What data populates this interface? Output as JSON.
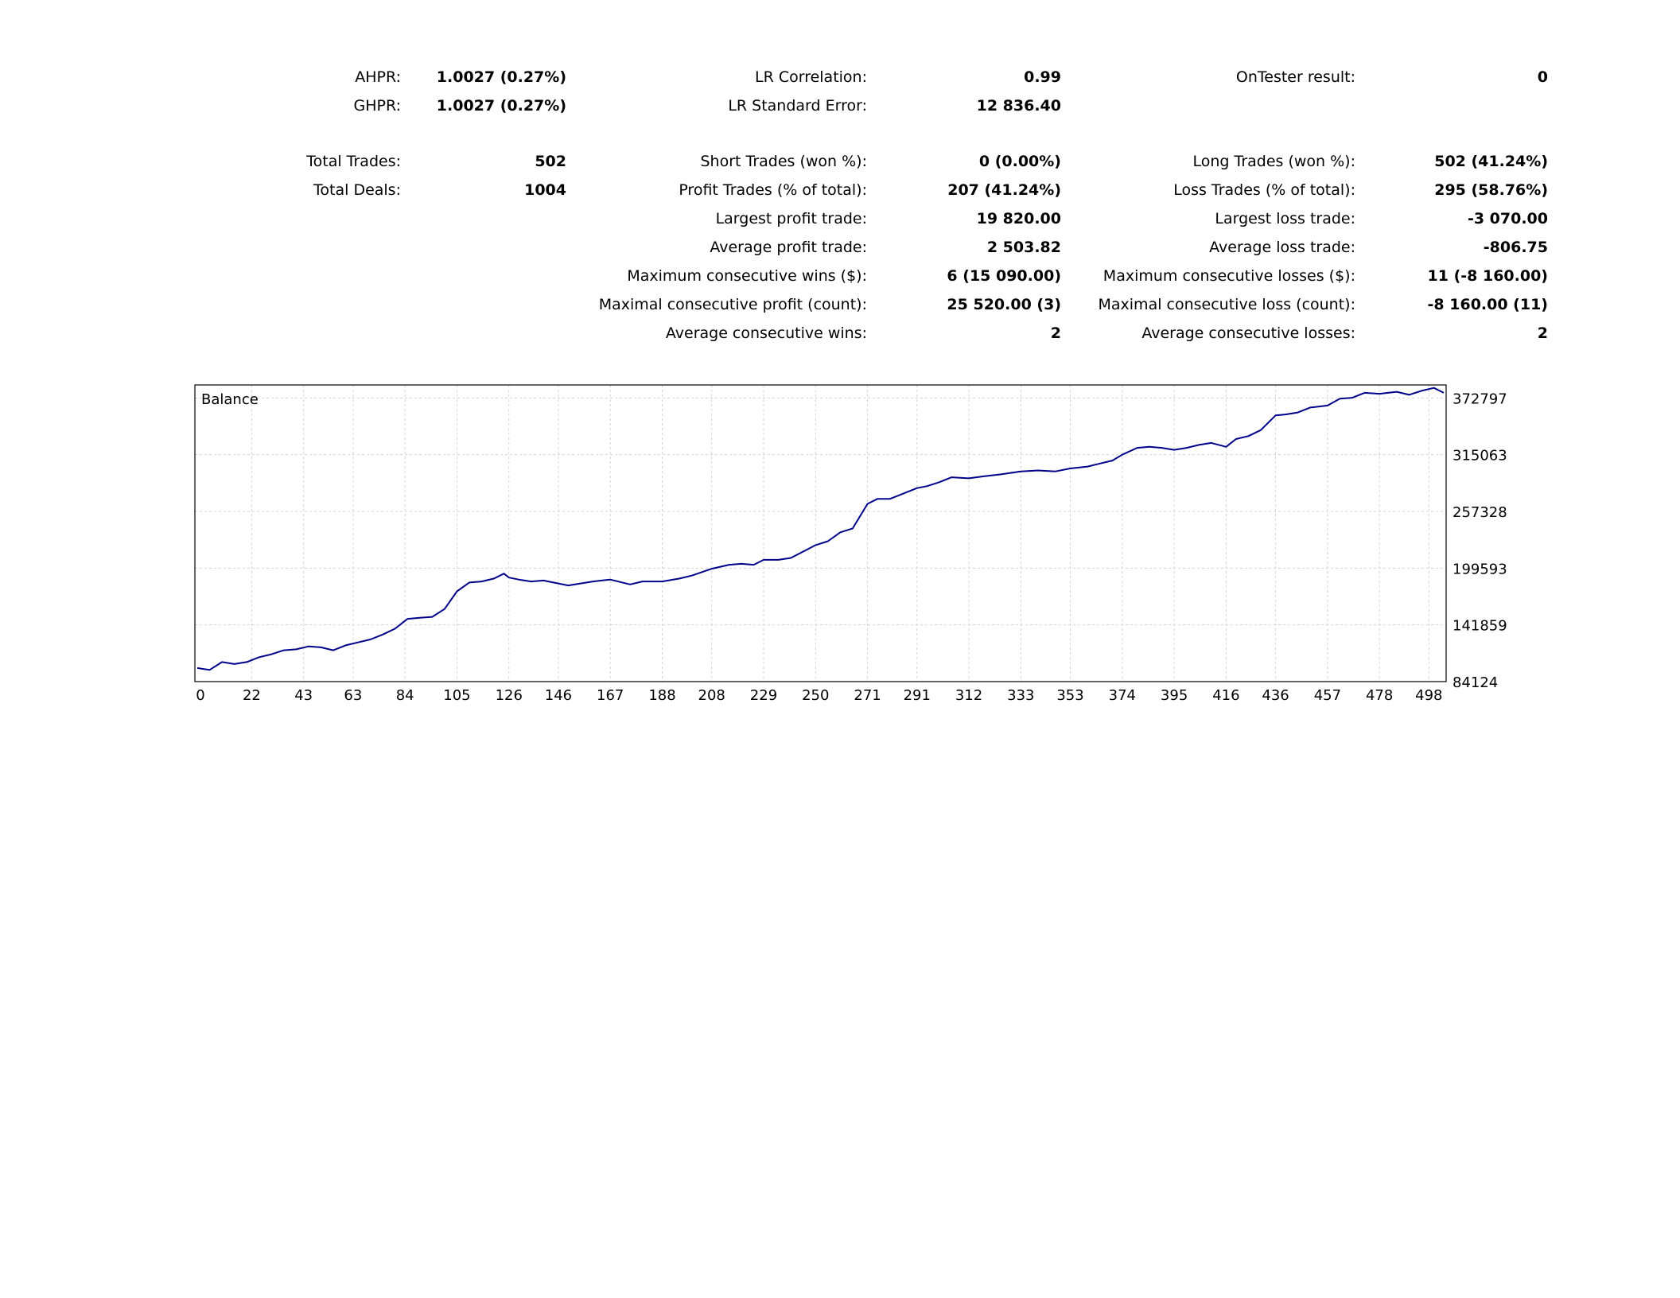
{
  "stats": {
    "rows": [
      [
        [
          "AHPR:",
          "1.0027 (0.27%)"
        ],
        [
          "LR Correlation:",
          "0.99"
        ],
        [
          "OnTester result:",
          "0"
        ]
      ],
      [
        [
          "GHPR:",
          "1.0027 (0.27%)"
        ],
        [
          "LR Standard Error:",
          "12 836.40"
        ],
        [
          "",
          ""
        ]
      ],
      [
        [
          "Total Trades:",
          "502"
        ],
        [
          "Short Trades (won %):",
          "0 (0.00%)"
        ],
        [
          "Long Trades (won %):",
          "502 (41.24%)"
        ]
      ],
      [
        [
          "Total Deals:",
          "1004"
        ],
        [
          "Profit Trades (% of total):",
          "207 (41.24%)"
        ],
        [
          "Loss Trades (% of total):",
          "295 (58.76%)"
        ]
      ],
      [
        [
          "",
          ""
        ],
        [
          "Largest profit trade:",
          "19 820.00"
        ],
        [
          "Largest loss trade:",
          "-3 070.00"
        ]
      ],
      [
        [
          "",
          ""
        ],
        [
          "Average profit trade:",
          "2 503.82"
        ],
        [
          "Average loss trade:",
          "-806.75"
        ]
      ],
      [
        [
          "",
          ""
        ],
        [
          "Maximum consecutive wins ($):",
          "6 (15 090.00)"
        ],
        [
          "Maximum consecutive losses ($):",
          "11 (-8 160.00)"
        ]
      ],
      [
        [
          "",
          ""
        ],
        [
          "Maximal consecutive profit (count):",
          "25 520.00 (3)"
        ],
        [
          "Maximal consecutive loss (count):",
          "-8 160.00 (11)"
        ]
      ],
      [
        [
          "",
          ""
        ],
        [
          "Average consecutive wins:",
          "2"
        ],
        [
          "Average consecutive losses:",
          "2"
        ]
      ]
    ]
  },
  "chart_data": {
    "type": "line",
    "title": "Balance",
    "xlabel": "",
    "ylabel": "",
    "xlim": [
      0,
      504
    ],
    "ylim": [
      84124,
      386000
    ],
    "x_ticks": [
      0,
      22,
      43,
      63,
      84,
      105,
      126,
      146,
      167,
      188,
      208,
      229,
      250,
      271,
      291,
      312,
      333,
      353,
      374,
      395,
      416,
      436,
      457,
      478,
      498
    ],
    "y_ticks": [
      84124,
      141859,
      199593,
      257328,
      315063,
      372797
    ],
    "grid": true,
    "line_color": "#00008b",
    "series": [
      {
        "name": "",
        "x": [
          0,
          5,
          10,
          15,
          20,
          25,
          30,
          35,
          40,
          45,
          50,
          55,
          60,
          65,
          70,
          75,
          80,
          85,
          90,
          95,
          100,
          105,
          110,
          115,
          120,
          124,
          126,
          130,
          135,
          140,
          146,
          150,
          155,
          160,
          167,
          175,
          180,
          188,
          195,
          200,
          208,
          215,
          220,
          225,
          229,
          235,
          240,
          250,
          255,
          260,
          265,
          271,
          275,
          280,
          285,
          291,
          295,
          300,
          305,
          312,
          318,
          325,
          333,
          340,
          347,
          353,
          360,
          365,
          370,
          374,
          380,
          385,
          390,
          395,
          400,
          405,
          410,
          416,
          420,
          425,
          430,
          436,
          440,
          445,
          450,
          457,
          462,
          467,
          472,
          478,
          485,
          490,
          495,
          500,
          504
        ],
        "values": [
          98000,
          96000,
          104000,
          102000,
          104000,
          109000,
          112000,
          116000,
          117000,
          120000,
          119000,
          116000,
          121000,
          124000,
          127000,
          132000,
          138000,
          148000,
          149000,
          150000,
          158000,
          176000,
          185000,
          186000,
          189000,
          194000,
          190000,
          188000,
          186000,
          187000,
          184000,
          182000,
          184000,
          186000,
          188000,
          183000,
          186000,
          186000,
          189000,
          192000,
          199000,
          203000,
          204000,
          203000,
          208000,
          208000,
          210000,
          223000,
          227000,
          236000,
          240000,
          265000,
          270000,
          270000,
          275000,
          281000,
          283000,
          287000,
          292000,
          291000,
          293000,
          295000,
          298000,
          299000,
          298000,
          301000,
          303000,
          306000,
          309000,
          315000,
          322000,
          323000,
          322000,
          320000,
          322000,
          325000,
          327000,
          323000,
          331000,
          334000,
          340000,
          355000,
          356000,
          358000,
          363000,
          365000,
          372000,
          373000,
          378000,
          377000,
          379000,
          376000,
          380000,
          383000,
          378000
        ]
      }
    ]
  }
}
